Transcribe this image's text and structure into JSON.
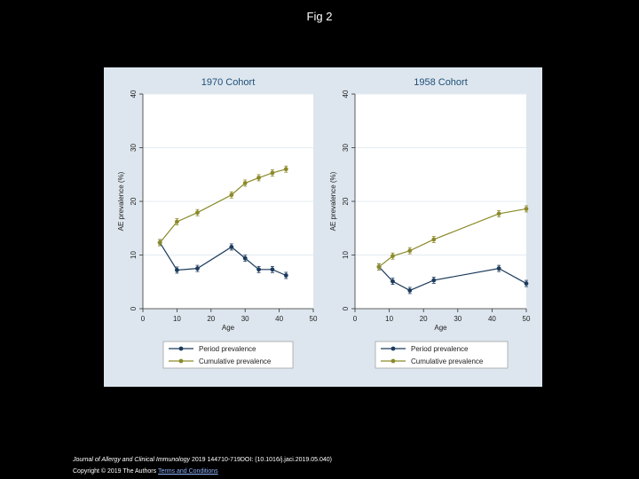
{
  "page": {
    "title": "Fig 2"
  },
  "caption": {
    "journal": "Journal of Allergy and Clinical Immunology",
    "citation": " 2019 144710-719DOI: (10.1016/j.jaci.2019.05.040)",
    "copyright": "Copyright © 2019 The Authors",
    "terms_link": "Terms and Conditions"
  },
  "colors": {
    "page_background": "#000000",
    "figure_background": "#dde6ee",
    "plot_background": "#ffffff",
    "title_color": "#1f4e79",
    "period_color": "#1b3a5c",
    "cumulative_color": "#8b8a2a"
  },
  "legend": {
    "period": "Period prevalence",
    "cumulative": "Cumulative prevalence"
  },
  "chart_data": [
    {
      "type": "line",
      "title": "1970 Cohort",
      "xlabel": "Age",
      "ylabel": "AE prevalence (%)",
      "xlim": [
        0,
        50
      ],
      "ylim": [
        0,
        40
      ],
      "xticks": [
        0,
        10,
        20,
        30,
        40,
        50
      ],
      "yticks": [
        0,
        10,
        20,
        30,
        40
      ],
      "grid": true,
      "legend_position": "bottom",
      "series": [
        {
          "name": "Period prevalence",
          "x": [
            5,
            10,
            16,
            26,
            30,
            34,
            38,
            42
          ],
          "y": [
            12.3,
            7.2,
            7.5,
            11.5,
            9.4,
            7.3,
            7.3,
            6.2
          ]
        },
        {
          "name": "Cumulative prevalence",
          "x": [
            5,
            10,
            16,
            26,
            30,
            34,
            38,
            42
          ],
          "y": [
            12.3,
            16.2,
            17.9,
            21.2,
            23.4,
            24.4,
            25.3,
            26.0
          ]
        }
      ]
    },
    {
      "type": "line",
      "title": "1958 Cohort",
      "xlabel": "Age",
      "ylabel": "AE prevalence (%)",
      "xlim": [
        0,
        50
      ],
      "ylim": [
        0,
        40
      ],
      "xticks": [
        0,
        10,
        20,
        30,
        40,
        50
      ],
      "yticks": [
        0,
        10,
        20,
        30,
        40
      ],
      "grid": true,
      "legend_position": "bottom",
      "series": [
        {
          "name": "Period prevalence",
          "x": [
            7,
            11,
            16,
            23,
            42,
            50
          ],
          "y": [
            7.8,
            5.1,
            3.4,
            5.3,
            7.5,
            4.7
          ]
        },
        {
          "name": "Cumulative prevalence",
          "x": [
            7,
            11,
            16,
            23,
            42,
            50
          ],
          "y": [
            7.8,
            9.8,
            10.8,
            12.9,
            17.7,
            18.6
          ]
        }
      ]
    }
  ]
}
